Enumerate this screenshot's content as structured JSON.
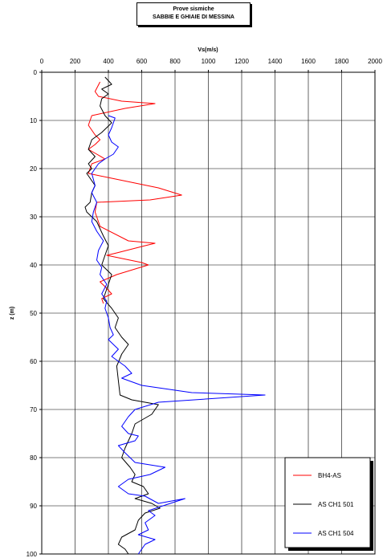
{
  "chart_data": {
    "type": "line",
    "title": "Prove sismiche",
    "subtitle": "SABBIE E GHIAIE DI MESSINA",
    "xlabel": "Vs(m/s)",
    "ylabel": "z (m)",
    "xlim": [
      0,
      2000
    ],
    "ylim": [
      0,
      100
    ],
    "y_inverted": true,
    "x_axis_position": "top",
    "x_ticks": [
      "0",
      "200",
      "400",
      "600",
      "800",
      "1000",
      "1200",
      "1400",
      "1600",
      "1800",
      "2000"
    ],
    "y_ticks": [
      "0",
      "10",
      "20",
      "30",
      "40",
      "50",
      "60",
      "70",
      "80",
      "90",
      "100"
    ],
    "grid": true,
    "legend_position": "bottom-right",
    "series": [
      {
        "name": "BH4-AS",
        "color": "#ff0000",
        "points": [
          [
            350,
            2
          ],
          [
            320,
            4
          ],
          [
            340,
            5
          ],
          [
            480,
            6
          ],
          [
            680,
            6.5
          ],
          [
            500,
            7.5
          ],
          [
            300,
            9
          ],
          [
            280,
            11
          ],
          [
            320,
            13
          ],
          [
            350,
            14
          ],
          [
            320,
            15
          ],
          [
            280,
            16
          ],
          [
            330,
            17
          ],
          [
            380,
            18
          ],
          [
            300,
            19
          ],
          [
            290,
            20
          ],
          [
            280,
            21
          ],
          [
            420,
            22
          ],
          [
            700,
            24
          ],
          [
            840,
            25.5
          ],
          [
            650,
            26.5
          ],
          [
            330,
            27
          ],
          [
            320,
            29
          ],
          [
            350,
            32
          ],
          [
            520,
            35
          ],
          [
            680,
            35.5
          ],
          [
            620,
            36
          ],
          [
            450,
            37.5
          ],
          [
            390,
            38
          ],
          [
            600,
            39.5
          ],
          [
            640,
            40
          ],
          [
            450,
            42
          ],
          [
            350,
            43.5
          ],
          [
            380,
            44.5
          ],
          [
            420,
            46
          ],
          [
            360,
            47
          ],
          [
            370,
            48
          ]
        ]
      },
      {
        "name": "AS CH1 501",
        "color": "#000000",
        "points": [
          [
            380,
            1
          ],
          [
            420,
            2.5
          ],
          [
            360,
            3.5
          ],
          [
            400,
            4.5
          ],
          [
            360,
            5.5
          ],
          [
            350,
            7
          ],
          [
            380,
            9
          ],
          [
            420,
            10.5
          ],
          [
            360,
            12.5
          ],
          [
            300,
            14
          ],
          [
            280,
            16
          ],
          [
            320,
            17.5
          ],
          [
            280,
            19
          ],
          [
            300,
            20
          ],
          [
            270,
            21
          ],
          [
            290,
            22
          ],
          [
            320,
            23.5
          ],
          [
            300,
            25
          ],
          [
            290,
            27
          ],
          [
            260,
            28
          ],
          [
            270,
            29
          ],
          [
            330,
            31
          ],
          [
            370,
            34
          ],
          [
            400,
            36
          ],
          [
            380,
            38
          ],
          [
            360,
            40
          ],
          [
            420,
            42
          ],
          [
            400,
            44
          ],
          [
            370,
            47
          ],
          [
            420,
            49
          ],
          [
            460,
            51
          ],
          [
            440,
            53
          ],
          [
            480,
            55
          ],
          [
            520,
            56.5
          ],
          [
            480,
            58.5
          ],
          [
            450,
            61
          ],
          [
            460,
            64
          ],
          [
            470,
            67
          ],
          [
            540,
            68
          ],
          [
            700,
            69
          ],
          [
            660,
            71
          ],
          [
            560,
            73
          ],
          [
            540,
            75
          ],
          [
            500,
            78
          ],
          [
            480,
            80
          ],
          [
            530,
            82
          ],
          [
            560,
            83.5
          ],
          [
            540,
            85
          ],
          [
            610,
            86
          ],
          [
            640,
            87.5
          ],
          [
            560,
            88.5
          ],
          [
            660,
            89.5
          ],
          [
            710,
            90.5
          ],
          [
            620,
            91.5
          ],
          [
            580,
            93
          ],
          [
            560,
            95
          ],
          [
            480,
            96.5
          ],
          [
            460,
            98
          ],
          [
            500,
            99
          ],
          [
            520,
            100
          ]
        ]
      },
      {
        "name": "AS CH1 504",
        "color": "#0000ff",
        "points": [
          [
            400,
            9
          ],
          [
            440,
            9.5
          ],
          [
            420,
            11.5
          ],
          [
            400,
            13
          ],
          [
            420,
            14.5
          ],
          [
            460,
            15.5
          ],
          [
            430,
            17
          ],
          [
            380,
            18
          ],
          [
            340,
            19
          ],
          [
            300,
            21
          ],
          [
            320,
            23.5
          ],
          [
            300,
            25
          ],
          [
            330,
            27
          ],
          [
            310,
            29
          ],
          [
            300,
            31
          ],
          [
            330,
            33
          ],
          [
            370,
            35
          ],
          [
            340,
            37
          ],
          [
            330,
            39
          ],
          [
            360,
            40.5
          ],
          [
            350,
            42
          ],
          [
            390,
            44
          ],
          [
            360,
            46
          ],
          [
            390,
            47.5
          ],
          [
            380,
            49
          ],
          [
            400,
            51
          ],
          [
            410,
            53
          ],
          [
            430,
            54.5
          ],
          [
            400,
            55.5
          ],
          [
            460,
            57.5
          ],
          [
            420,
            59
          ],
          [
            500,
            61
          ],
          [
            540,
            62.5
          ],
          [
            480,
            63.5
          ],
          [
            600,
            65
          ],
          [
            900,
            66.5
          ],
          [
            1340,
            67
          ],
          [
            700,
            68.5
          ],
          [
            560,
            70
          ],
          [
            520,
            71.5
          ],
          [
            480,
            73.5
          ],
          [
            520,
            75
          ],
          [
            580,
            75.5
          ],
          [
            560,
            76.5
          ],
          [
            460,
            77.5
          ],
          [
            500,
            79
          ],
          [
            560,
            81
          ],
          [
            740,
            82
          ],
          [
            650,
            83.5
          ],
          [
            520,
            84.5
          ],
          [
            460,
            86
          ],
          [
            520,
            87.5
          ],
          [
            620,
            88
          ],
          [
            700,
            89.5
          ],
          [
            860,
            88.5
          ],
          [
            640,
            91
          ],
          [
            680,
            92
          ],
          [
            620,
            93.5
          ],
          [
            640,
            95
          ],
          [
            580,
            96
          ],
          [
            680,
            97
          ],
          [
            620,
            98
          ],
          [
            580,
            100
          ]
        ]
      }
    ]
  }
}
